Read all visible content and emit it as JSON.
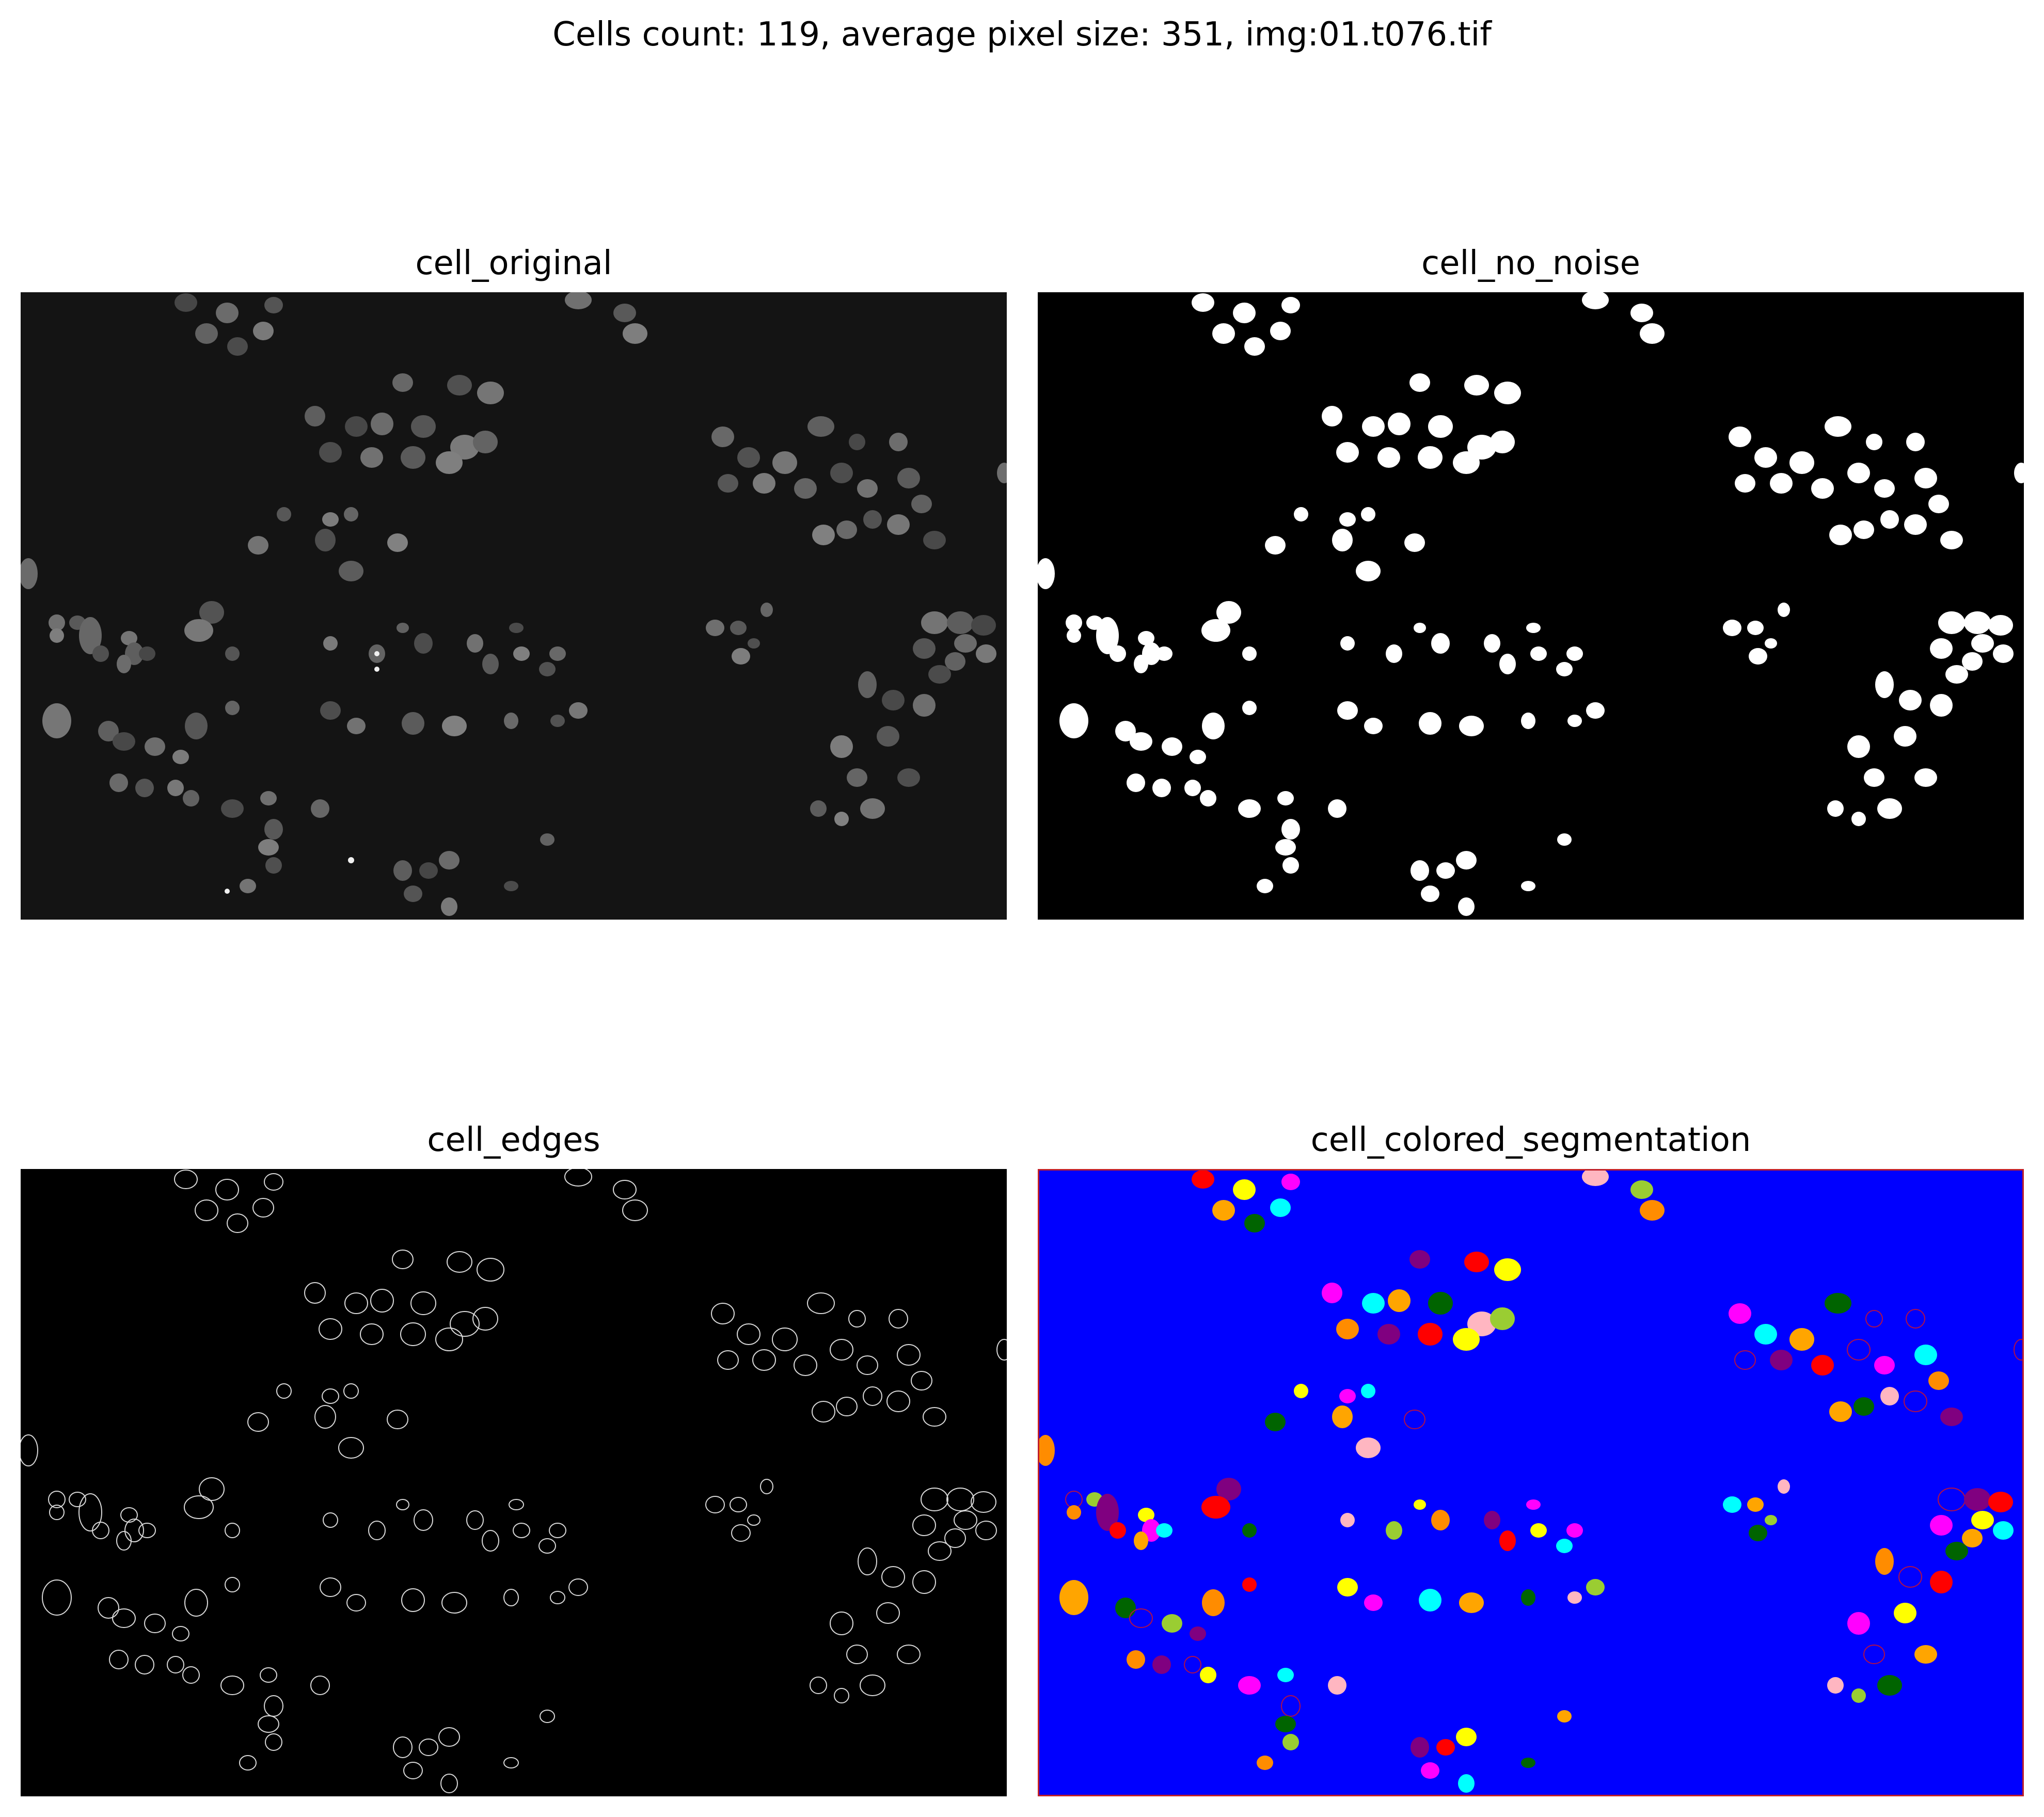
{
  "figure": {
    "suptitle": "Cells count: 119, average pixel size: 351, img:01.t076.tif"
  },
  "panels": [
    {
      "title": "cell_original",
      "view": "original",
      "background": "#141414",
      "foreground": "#5a5a5a"
    },
    {
      "title": "cell_no_noise",
      "view": "binary",
      "background": "#000000",
      "foreground": "#ffffff"
    },
    {
      "title": "cell_edges",
      "view": "edges",
      "background": "#000000",
      "foreground": "#d8d8d8"
    },
    {
      "title": "cell_colored_segmentation",
      "view": "segmentation",
      "background": "#0000ff",
      "foreground": "#ff0000"
    }
  ],
  "segment_palette": [
    "#ff0000",
    "#ffff00",
    "#ff00ff",
    "#00ffff",
    "#ffa500",
    "#006400",
    "#ffb6c1",
    "#9acd32",
    "#ff8c00",
    "#800080"
  ]
}
